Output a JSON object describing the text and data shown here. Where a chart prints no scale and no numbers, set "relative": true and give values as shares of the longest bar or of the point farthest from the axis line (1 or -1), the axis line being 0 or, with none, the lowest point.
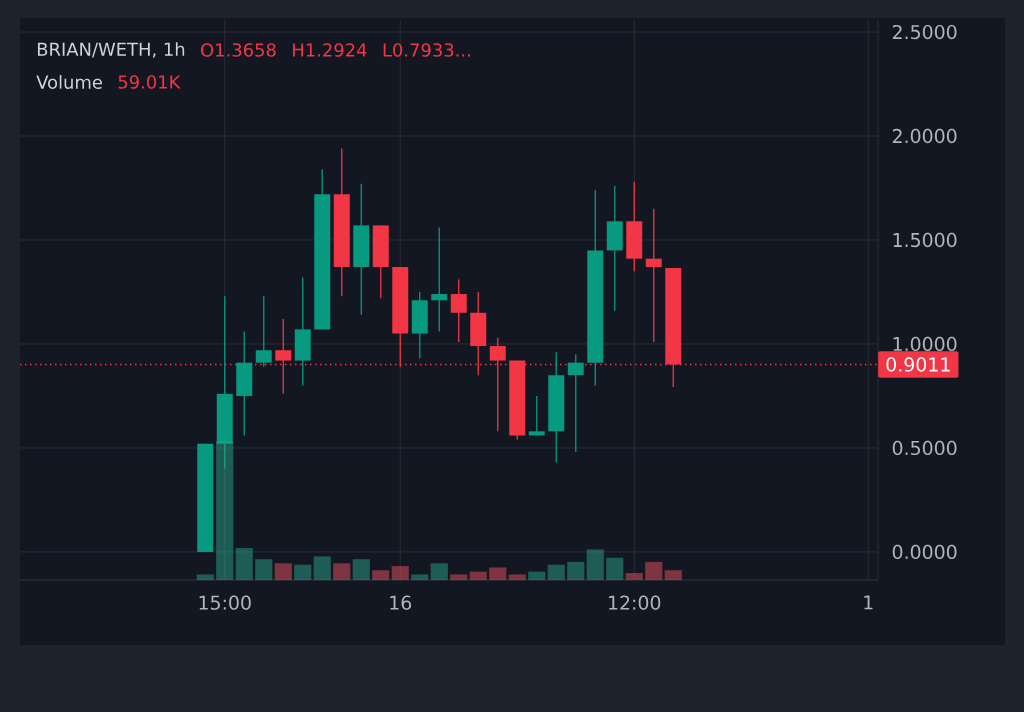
{
  "chart_data": [
    {
      "type": "candlestick",
      "title": "BRIAN/WETH, 1h",
      "annotations": [
        "O1.3658",
        "H1.2924",
        "L0.7933..."
      ],
      "categories": [
        null,
        null,
        null,
        null,
        null,
        null,
        null,
        null,
        null,
        null,
        "15:00",
        null,
        null,
        null,
        null,
        null,
        null,
        null,
        null,
        "16",
        null,
        null,
        null,
        null,
        null,
        null,
        null,
        null,
        null,
        null,
        null,
        "12:00",
        null,
        null,
        null,
        null,
        null,
        null,
        null,
        null,
        null,
        null,
        null,
        "1"
      ],
      "ohlc": [
        null,
        null,
        null,
        null,
        null,
        null,
        null,
        null,
        null,
        [
          0.0,
          0.52,
          0.0,
          0.52
        ],
        [
          0.52,
          1.23,
          0.4,
          0.76
        ],
        [
          0.75,
          1.06,
          0.56,
          0.91
        ],
        [
          0.91,
          1.23,
          0.89,
          0.97
        ],
        [
          0.97,
          1.12,
          0.76,
          0.92
        ],
        [
          0.92,
          1.32,
          0.8,
          1.07
        ],
        [
          1.07,
          1.84,
          1.07,
          1.72
        ],
        [
          1.72,
          1.94,
          1.23,
          1.37
        ],
        [
          1.37,
          1.77,
          1.14,
          1.57
        ],
        [
          1.57,
          1.57,
          1.22,
          1.37
        ],
        [
          1.37,
          1.37,
          0.89,
          1.05
        ],
        [
          1.05,
          1.25,
          0.93,
          1.21
        ],
        [
          1.21,
          1.56,
          1.06,
          1.24
        ],
        [
          1.24,
          1.31,
          1.01,
          1.15
        ],
        [
          1.15,
          1.25,
          0.85,
          0.99
        ],
        [
          0.99,
          1.03,
          0.58,
          0.92
        ],
        [
          0.92,
          0.92,
          0.54,
          0.56
        ],
        [
          0.56,
          0.75,
          0.56,
          0.58
        ],
        [
          0.58,
          0.96,
          0.43,
          0.85
        ],
        [
          0.85,
          0.95,
          0.48,
          0.91
        ],
        [
          0.91,
          1.74,
          0.8,
          1.45
        ],
        [
          1.45,
          1.76,
          1.16,
          1.59
        ],
        [
          1.59,
          1.78,
          1.35,
          1.41
        ],
        [
          1.41,
          1.65,
          1.01,
          1.37
        ],
        [
          1.3658,
          1.3658,
          0.7933,
          0.9011
        ],
        null,
        null,
        null,
        null,
        null,
        null,
        null,
        null,
        null,
        null
      ],
      "colors": [
        null,
        null,
        null,
        null,
        null,
        null,
        null,
        null,
        null,
        "#089981",
        "#089981",
        "#089981",
        "#089981",
        "#f23645",
        "#089981",
        "#089981",
        "#f23645",
        "#089981",
        "#f23645",
        "#f23645",
        "#089981",
        "#089981",
        "#f23645",
        "#f23645",
        "#f23645",
        "#f23645",
        "#089981",
        "#089981",
        "#089981",
        "#089981",
        "#089981",
        "#f23645",
        "#f23645",
        "#f23645",
        null,
        null,
        null,
        null,
        null,
        null,
        null,
        null,
        null,
        null
      ],
      "ylim": [
        -0.135,
        2.558
      ],
      "yticks": [
        {
          "value": 0,
          "label": "0.0000"
        },
        {
          "value": 0.5,
          "label": "0.5000"
        },
        {
          "value": 1,
          "label": "1.0000"
        },
        {
          "value": 1.5,
          "label": "1.5000"
        },
        {
          "value": 2,
          "label": "2.0000"
        },
        {
          "value": 2.5,
          "label": "2.5000"
        }
      ],
      "grid": true,
      "ref_lines": [
        {
          "axis": "y",
          "value": 0.9011,
          "label": "0.9011",
          "color": "#f23645",
          "line_style": "dotted"
        }
      ]
    },
    {
      "type": "bar",
      "title": "Volume",
      "relative": true,
      "annotations": [
        "59.01K"
      ],
      "categories": [
        null,
        null,
        null,
        null,
        null,
        null,
        null,
        null,
        null,
        null,
        null,
        null,
        null,
        null,
        null,
        null,
        null,
        null,
        null,
        null,
        null,
        null,
        null,
        null,
        null,
        null,
        null,
        null,
        null,
        null,
        null,
        null,
        null,
        null,
        null,
        null,
        null,
        null,
        null,
        null,
        null,
        null,
        null,
        null
      ],
      "values": [
        null,
        null,
        null,
        null,
        null,
        null,
        null,
        null,
        null,
        0.04,
        1,
        0.23,
        0.15,
        0.12,
        0.11,
        0.17,
        0.12,
        0.15,
        0.07,
        0.1,
        0.04,
        0.12,
        0.04,
        0.06,
        0.09,
        0.04,
        0.06,
        0.11,
        0.13,
        0.22,
        0.16,
        0.05,
        0.13,
        0.07,
        null,
        null,
        null,
        null,
        null,
        null,
        null,
        null,
        null,
        null
      ],
      "colors": [
        null,
        null,
        null,
        null,
        null,
        null,
        null,
        null,
        null,
        "#1e5d55",
        "#1e5d55",
        "#1e5d55",
        "#1e5d55",
        "#7e3441",
        "#1e5d55",
        "#1e5d55",
        "#7e3441",
        "#1e5d55",
        "#7e3441",
        "#7e3441",
        "#1e5d55",
        "#1e5d55",
        "#7e3441",
        "#7e3441",
        "#7e3441",
        "#7e3441",
        "#1e5d55",
        "#1e5d55",
        "#1e5d55",
        "#1e5d55",
        "#1e5d55",
        "#7e3441",
        "#7e3441",
        "#7e3441",
        null,
        null,
        null,
        null,
        null,
        null,
        null,
        null,
        null,
        null
      ]
    }
  ]
}
